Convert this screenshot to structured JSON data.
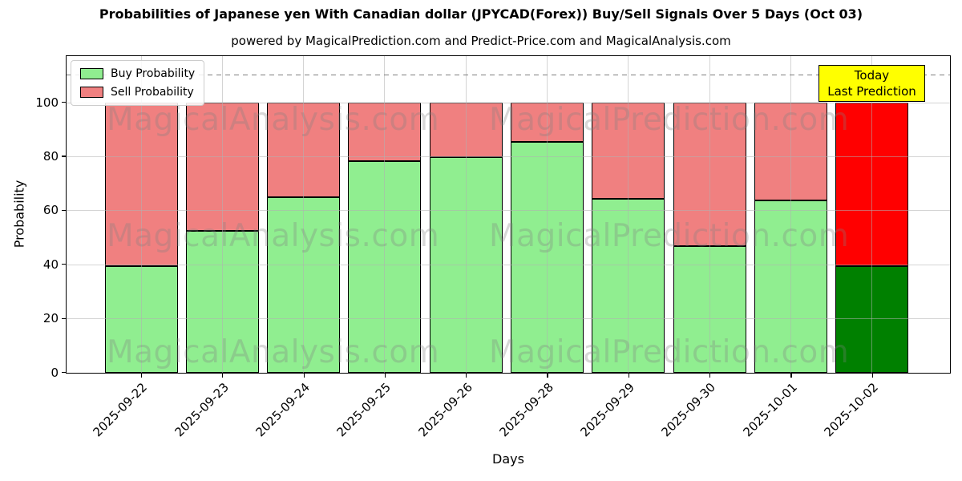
{
  "annotation": {
    "line1": "Today",
    "line2": "Last Prediction",
    "bg": "#FFFF00",
    "border_color": "#000000"
  },
  "watermarks": {
    "left_text": "MagicalAnalysis.com",
    "right_text": "MagicalPrediction.com",
    "color": "#808080",
    "opacity": 0.3
  },
  "chart_data": {
    "type": "bar",
    "stacked": true,
    "title": "Probabilities of Japanese yen With Canadian dollar (JPYCAD(Forex)) Buy/Sell Signals Over 5 Days (Oct 03)",
    "subtitle": "powered by MagicalPrediction.com and Predict-Price.com and MagicalAnalysis.com",
    "xlabel": "Days",
    "ylabel": "Probability",
    "categories": [
      "2025-09-22",
      "2025-09-23",
      "2025-09-24",
      "2025-09-25",
      "2025-09-26",
      "2025-09-28",
      "2025-09-29",
      "2025-09-30",
      "2025-10-01",
      "2025-10-02"
    ],
    "series": [
      {
        "name": "Buy Probability",
        "color": "#90EE90",
        "last_bar_color": "#008000",
        "values": [
          39.5,
          52.5,
          65,
          78.5,
          80,
          85.5,
          64.5,
          47,
          64,
          39.5
        ]
      },
      {
        "name": "Sell Probability",
        "color": "#F08080",
        "last_bar_color": "#FF0000",
        "values": [
          60.5,
          47.5,
          35,
          21.5,
          20,
          14.5,
          35.5,
          53,
          36,
          60.5
        ]
      }
    ],
    "bar_edge_color": "#000000",
    "yticks": [
      0,
      20,
      40,
      60,
      80,
      100
    ],
    "ylim": [
      0,
      117
    ],
    "grid": true,
    "legend_position": "upper left",
    "hline": {
      "y": 110,
      "color": "#7f7f7f",
      "style": "dashed"
    }
  }
}
